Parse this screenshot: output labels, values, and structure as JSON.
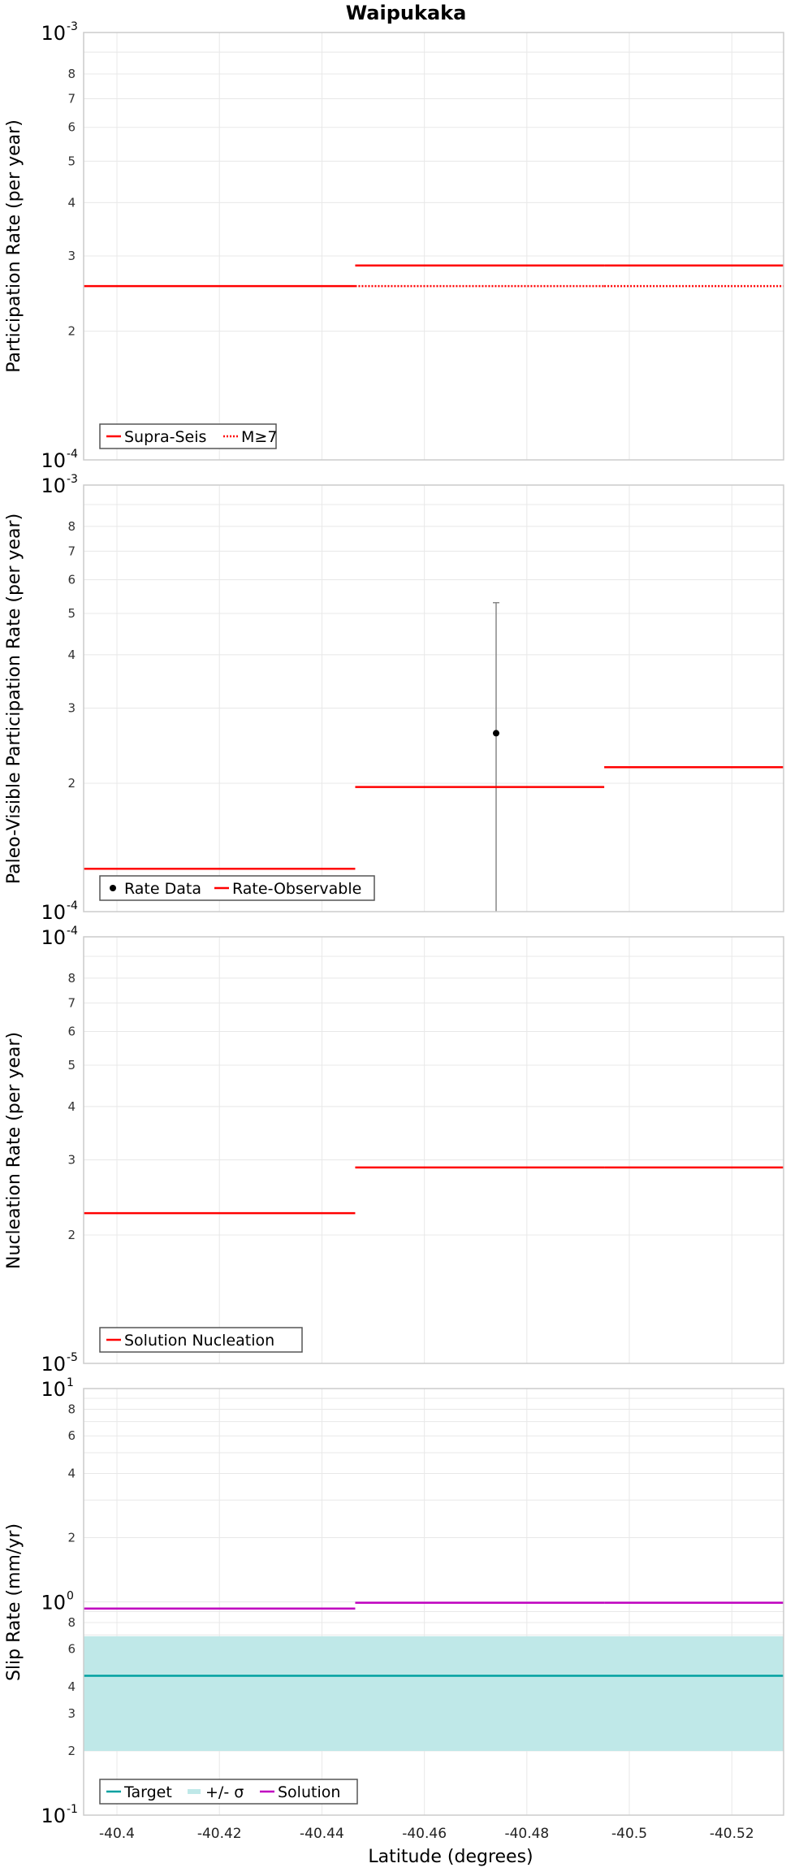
{
  "figure": {
    "title": "Waipukaka",
    "xlabel": "Latitude (degrees)",
    "x_ticks": [
      -40.4,
      -40.42,
      -40.44,
      -40.46,
      -40.48,
      -40.5,
      -40.52
    ],
    "x_tick_labels": [
      "-40.4",
      "-40.42",
      "-40.44",
      "-40.46",
      "-40.48",
      "-40.5",
      "-40.52"
    ],
    "xlim": [
      -40.3935,
      -40.5301
    ]
  },
  "colors": {
    "red": "#ff0000",
    "magenta": "#c000c0",
    "teal": "#00a0a0",
    "band": "#bfe8e8",
    "errorbar": "#888888",
    "grid": "#e8e8e8",
    "frame": "#cccccc"
  },
  "chart_data": [
    {
      "type": "line",
      "ylabel": "Participation Rate (per year)",
      "yscale": "log",
      "ylim": [
        0.0001,
        0.001
      ],
      "y_decade_labels": [
        {
          "mant": "10",
          "exp": "-3",
          "v": 0.001
        },
        {
          "mant": "10",
          "exp": "-4",
          "v": 0.0001
        }
      ],
      "y_minor_labels": [
        {
          "t": "8",
          "v": 0.0008
        },
        {
          "t": "7",
          "v": 0.0007
        },
        {
          "t": "6",
          "v": 0.0006
        },
        {
          "t": "5",
          "v": 0.0005
        },
        {
          "t": "4",
          "v": 0.0004
        },
        {
          "t": "3",
          "v": 0.0003
        },
        {
          "t": "2",
          "v": 0.0002
        }
      ],
      "legend": {
        "position": "bottom-left",
        "entries": [
          {
            "label": "Supra-Seis",
            "style": "solid-red"
          },
          {
            "label": "M≥7",
            "style": "dotted-red"
          }
        ]
      },
      "series": [
        {
          "name": "Supra-Seis",
          "style": "solid",
          "color": "#ff0000",
          "segments": [
            {
              "x0": -40.3935,
              "x1": -40.4465,
              "y": 0.000255
            },
            {
              "x0": -40.4465,
              "x1": -40.4951,
              "y": 0.000285
            },
            {
              "x0": -40.4951,
              "x1": -40.5301,
              "y": 0.000285
            }
          ]
        },
        {
          "name": "M≥7",
          "style": "dotted",
          "color": "#ff0000",
          "segments": [
            {
              "x0": -40.4465,
              "x1": -40.4951,
              "y": 0.000255
            },
            {
              "x0": -40.4951,
              "x1": -40.5301,
              "y": 0.000255
            }
          ]
        }
      ]
    },
    {
      "type": "line",
      "ylabel": "Paleo-Visible Participation Rate (per year)",
      "yscale": "log",
      "ylim": [
        0.0001,
        0.001
      ],
      "y_decade_labels": [
        {
          "mant": "10",
          "exp": "-3",
          "v": 0.001
        },
        {
          "mant": "10",
          "exp": "-4",
          "v": 0.0001
        }
      ],
      "y_minor_labels": [
        {
          "t": "8",
          "v": 0.0008
        },
        {
          "t": "7",
          "v": 0.0007
        },
        {
          "t": "6",
          "v": 0.0006
        },
        {
          "t": "5",
          "v": 0.0005
        },
        {
          "t": "4",
          "v": 0.0004
        },
        {
          "t": "3",
          "v": 0.0003
        },
        {
          "t": "2",
          "v": 0.0002
        }
      ],
      "legend": {
        "position": "bottom-left",
        "entries": [
          {
            "label": "Rate Data",
            "style": "dot-black"
          },
          {
            "label": "Rate-Observable",
            "style": "solid-red"
          }
        ]
      },
      "series": [
        {
          "name": "Rate-Observable",
          "style": "solid",
          "color": "#ff0000",
          "segments": [
            {
              "x0": -40.3935,
              "x1": -40.4465,
              "y": 0.000126
            },
            {
              "x0": -40.4465,
              "x1": -40.4951,
              "y": 0.000196
            },
            {
              "x0": -40.4951,
              "x1": -40.5301,
              "y": 0.000218
            }
          ]
        }
      ],
      "points": [
        {
          "name": "Rate Data",
          "x": -40.474,
          "y": 0.000262,
          "ylow": 0.0001,
          "yhigh": 0.00053
        }
      ]
    },
    {
      "type": "line",
      "ylabel": "Nucleation Rate (per year)",
      "yscale": "log",
      "ylim": [
        1e-05,
        0.0001
      ],
      "y_decade_labels": [
        {
          "mant": "10",
          "exp": "-4",
          "v": 0.0001
        },
        {
          "mant": "10",
          "exp": "-5",
          "v": 1e-05
        }
      ],
      "y_minor_labels": [
        {
          "t": "8",
          "v": 8e-05
        },
        {
          "t": "7",
          "v": 7e-05
        },
        {
          "t": "6",
          "v": 6e-05
        },
        {
          "t": "5",
          "v": 5e-05
        },
        {
          "t": "4",
          "v": 4e-05
        },
        {
          "t": "3",
          "v": 3e-05
        },
        {
          "t": "2",
          "v": 2e-05
        }
      ],
      "legend": {
        "position": "bottom-left",
        "entries": [
          {
            "label": "Solution Nucleation",
            "style": "solid-red"
          }
        ]
      },
      "series": [
        {
          "name": "Solution Nucleation",
          "style": "solid",
          "color": "#ff0000",
          "segments": [
            {
              "x0": -40.3935,
              "x1": -40.4465,
              "y": 2.25e-05
            },
            {
              "x0": -40.4465,
              "x1": -40.4951,
              "y": 2.88e-05
            },
            {
              "x0": -40.4951,
              "x1": -40.5301,
              "y": 2.88e-05
            }
          ]
        }
      ]
    },
    {
      "type": "line",
      "ylabel": "Slip Rate (mm/yr)",
      "yscale": "log",
      "ylim": [
        0.1,
        10
      ],
      "y_decade_labels": [
        {
          "mant": "10",
          "exp": "1",
          "v": 10
        },
        {
          "mant": "10",
          "exp": "0",
          "v": 1
        },
        {
          "mant": "10",
          "exp": "-1",
          "v": 0.1
        }
      ],
      "y_minor_labels": [
        {
          "t": "8",
          "v": 8
        },
        {
          "t": "6",
          "v": 6
        },
        {
          "t": "4",
          "v": 4
        },
        {
          "t": "2",
          "v": 2
        },
        {
          "t": "8",
          "v": 0.8
        },
        {
          "t": "6",
          "v": 0.6
        },
        {
          "t": "4",
          "v": 0.4
        },
        {
          "t": "3",
          "v": 0.3
        },
        {
          "t": "2",
          "v": 0.2
        }
      ],
      "legend": {
        "position": "bottom-left",
        "entries": [
          {
            "label": "Target",
            "style": "solid-teal"
          },
          {
            "label": "+/- σ",
            "style": "band"
          },
          {
            "label": "Solution",
            "style": "solid-magenta"
          }
        ]
      },
      "band": {
        "name": "+/- σ",
        "x0": -40.3935,
        "x1": -40.5301,
        "ylow": 0.2,
        "yhigh": 0.69
      },
      "series": [
        {
          "name": "Target",
          "style": "solid",
          "color": "#00a0a0",
          "segments": [
            {
              "x0": -40.3935,
              "x1": -40.5301,
              "y": 0.45
            }
          ]
        },
        {
          "name": "Solution",
          "style": "solid",
          "color": "#c000c0",
          "segments": [
            {
              "x0": -40.3935,
              "x1": -40.4465,
              "y": 0.93
            },
            {
              "x0": -40.4465,
              "x1": -40.4951,
              "y": 0.99
            },
            {
              "x0": -40.4951,
              "x1": -40.5301,
              "y": 0.99
            }
          ]
        }
      ]
    }
  ]
}
